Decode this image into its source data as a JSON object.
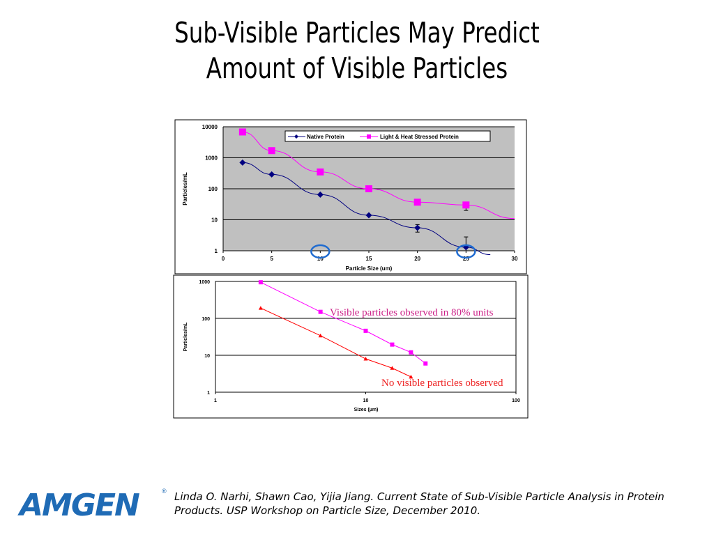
{
  "slide": {
    "title_lines": [
      "Sub-Visible Particles May Predict",
      "Amount of Visible Particles"
    ],
    "logo_text": "AMGEN",
    "logo_mark": "®",
    "citation": "Linda O. Narhi, Shawn Cao, Yijia Jiang. Current State of Sub-Visible Particle Analysis in Protein Products.  USP Workshop on Particle Size, December 2010.",
    "brand_color": "#1f6bb5"
  },
  "chart_data": [
    {
      "type": "line",
      "xlabel": "Particle Size (um)",
      "ylabel": "Particles/mL",
      "xlim": [
        0,
        30
      ],
      "ylim": [
        1,
        10000
      ],
      "yscale": "log",
      "xticks": [
        "0",
        "5",
        "10",
        "15",
        "20",
        "25",
        "30"
      ],
      "yticks": [
        "1",
        "10",
        "100",
        "1000",
        "10000"
      ],
      "grid": true,
      "background": "#c0c0c0",
      "legend": "top-right",
      "highlight_circles_x": [
        10,
        25
      ],
      "series": [
        {
          "name": "Native Protein",
          "color": "#000080",
          "marker": "diamond",
          "x": [
            2,
            5,
            10,
            15,
            20,
            25
          ],
          "y": [
            700,
            290,
            65,
            14,
            5.5,
            1.3
          ],
          "error_bars": [
            null,
            null,
            null,
            null,
            [
              4,
              7
            ],
            [
              1,
              2.8
            ]
          ],
          "trend_end": [
            27.5,
            0.75
          ]
        },
        {
          "name": "Light & Heat Stressed Protein",
          "color": "#ff00ff",
          "marker": "square",
          "x": [
            2,
            5,
            10,
            15,
            20,
            25
          ],
          "y": [
            6800,
            1700,
            350,
            100,
            37,
            30
          ],
          "error_bars": [
            null,
            null,
            null,
            null,
            [
              32,
              40
            ],
            [
              20,
              35
            ]
          ],
          "trend_end": [
            30,
            11
          ]
        }
      ]
    },
    {
      "type": "line",
      "xlabel": "Sizes (µm)",
      "ylabel": "Particles/mL",
      "xlim": [
        1,
        100
      ],
      "ylim": [
        1,
        1000
      ],
      "xscale": "log",
      "yscale": "log",
      "xticks": [
        "1",
        "10",
        "100"
      ],
      "yticks": [
        "1",
        "10",
        "100",
        "1000"
      ],
      "grid": true,
      "series": [
        {
          "color": "#ff00ff",
          "marker": "square",
          "x": [
            2,
            5,
            10,
            15,
            20,
            25
          ],
          "y": [
            950,
            150,
            46,
            19.5,
            12,
            6
          ]
        },
        {
          "color": "#ff0000",
          "marker": "triangle",
          "x": [
            2,
            5,
            10,
            15,
            20
          ],
          "y": [
            190,
            34,
            8,
            4.5,
            2.6
          ]
        }
      ],
      "annotations": [
        {
          "text": "Visible particles observed in 80% units",
          "color": "#cc2288"
        },
        {
          "text": "No visible particles observed",
          "color": "#ee2222"
        }
      ]
    }
  ]
}
